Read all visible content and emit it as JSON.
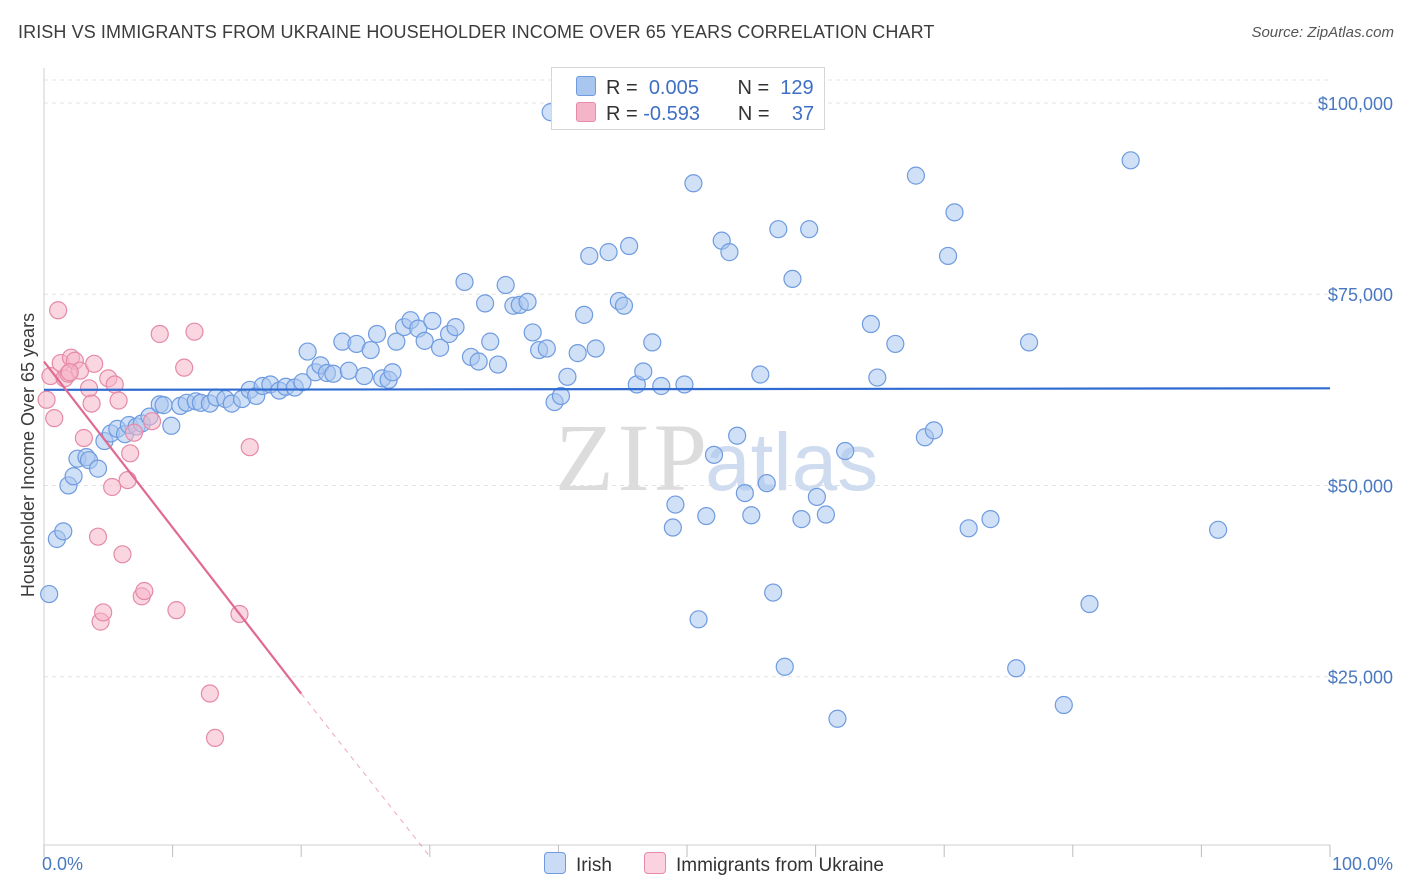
{
  "title": "IRISH VS IMMIGRANTS FROM UKRAINE HOUSEHOLDER INCOME OVER 65 YEARS CORRELATION CHART",
  "source": "Source: ZipAtlas.com",
  "watermark": {
    "zip": "ZIP",
    "atlas": "atlas"
  },
  "legend": {
    "rows": [
      {
        "r_label": "R =",
        "r_value": "0.005",
        "n_label": "N =",
        "n_value": "129",
        "color": "#a9c6ef",
        "stroke": "#6f9be0"
      },
      {
        "r_label": "R =",
        "r_value": "-0.593",
        "n_label": "N =",
        "n_value": "37",
        "color": "#f5b5c8",
        "stroke": "#e58aa8"
      }
    ]
  },
  "bottom_legend": [
    {
      "label": "Irish",
      "color": "#a9c6ef",
      "stroke": "#6f9be0"
    },
    {
      "label": "Immigrants from Ukraine",
      "color": "#f5b5c8",
      "stroke": "#e58aa8"
    }
  ],
  "chart_data": {
    "type": "scatter",
    "title": "IRISH VS IMMIGRANTS FROM UKRAINE HOUSEHOLDER INCOME OVER 65 YEARS CORRELATION CHART",
    "xlabel": "",
    "ylabel": "Householder Income Over 65 years",
    "xlim": [
      0,
      100
    ],
    "ylim": [
      3000,
      103000
    ],
    "x_tick_labels": [
      "0.0%",
      "100.0%"
    ],
    "y_ticks": [
      25000,
      50000,
      75000,
      100000
    ],
    "y_tick_labels": [
      "$25,000",
      "$50,000",
      "$75,000",
      "$100,000"
    ],
    "grid": true,
    "series": [
      {
        "name": "Irish",
        "color": "#6f9be0",
        "fill": "#a9c6ef",
        "trend": {
          "x": [
            0,
            100
          ],
          "y": [
            62500,
            62700
          ],
          "color": "#2f6bd0"
        },
        "points": [
          [
            0.4,
            35800
          ],
          [
            1.0,
            43000
          ],
          [
            1.5,
            44000
          ],
          [
            1.9,
            50000
          ],
          [
            2.3,
            51200
          ],
          [
            2.6,
            53500
          ],
          [
            3.3,
            53700
          ],
          [
            3.5,
            53300
          ],
          [
            4.2,
            52200
          ],
          [
            4.7,
            55800
          ],
          [
            5.2,
            56800
          ],
          [
            5.7,
            57400
          ],
          [
            6.3,
            56700
          ],
          [
            6.6,
            57900
          ],
          [
            7.2,
            57700
          ],
          [
            7.6,
            58100
          ],
          [
            8.2,
            59000
          ],
          [
            9.0,
            60600
          ],
          [
            9.3,
            60500
          ],
          [
            9.9,
            57800
          ],
          [
            10.6,
            60400
          ],
          [
            11.1,
            60800
          ],
          [
            11.8,
            61000
          ],
          [
            12.2,
            60800
          ],
          [
            12.9,
            60700
          ],
          [
            13.4,
            61500
          ],
          [
            14.1,
            61300
          ],
          [
            14.6,
            60700
          ],
          [
            15.4,
            61300
          ],
          [
            16.0,
            62500
          ],
          [
            16.5,
            61700
          ],
          [
            17.0,
            63000
          ],
          [
            17.6,
            63200
          ],
          [
            18.3,
            62400
          ],
          [
            18.8,
            62900
          ],
          [
            19.5,
            62800
          ],
          [
            20.1,
            63500
          ],
          [
            20.5,
            67500
          ],
          [
            21.1,
            64800
          ],
          [
            21.5,
            65700
          ],
          [
            22.0,
            64700
          ],
          [
            22.5,
            64600
          ],
          [
            23.2,
            68800
          ],
          [
            23.7,
            65000
          ],
          [
            24.3,
            68500
          ],
          [
            24.9,
            64300
          ],
          [
            25.4,
            67700
          ],
          [
            25.9,
            69800
          ],
          [
            26.3,
            64000
          ],
          [
            26.8,
            63800
          ],
          [
            27.1,
            64800
          ],
          [
            27.4,
            68800
          ],
          [
            28.0,
            70700
          ],
          [
            28.5,
            71600
          ],
          [
            29.1,
            70500
          ],
          [
            29.6,
            68900
          ],
          [
            30.2,
            71500
          ],
          [
            30.8,
            68000
          ],
          [
            31.5,
            69800
          ],
          [
            32.0,
            70700
          ],
          [
            32.7,
            76600
          ],
          [
            33.2,
            66800
          ],
          [
            33.8,
            66200
          ],
          [
            34.3,
            73800
          ],
          [
            34.7,
            68800
          ],
          [
            35.3,
            65800
          ],
          [
            35.9,
            76200
          ],
          [
            36.5,
            73500
          ],
          [
            37.0,
            73600
          ],
          [
            37.6,
            74000
          ],
          [
            38.0,
            70000
          ],
          [
            38.5,
            67700
          ],
          [
            39.1,
            67900
          ],
          [
            39.7,
            60900
          ],
          [
            40.2,
            61700
          ],
          [
            40.7,
            64200
          ],
          [
            41.5,
            67300
          ],
          [
            42.0,
            72300
          ],
          [
            42.4,
            80000
          ],
          [
            42.9,
            67900
          ],
          [
            43.9,
            80500
          ],
          [
            44.7,
            74100
          ],
          [
            45.1,
            73500
          ],
          [
            45.5,
            81300
          ],
          [
            46.1,
            63200
          ],
          [
            46.6,
            64900
          ],
          [
            47.3,
            68700
          ],
          [
            48.0,
            63000
          ],
          [
            48.9,
            44500
          ],
          [
            49.1,
            47500
          ],
          [
            49.8,
            63200
          ],
          [
            50.5,
            89500
          ],
          [
            50.9,
            32500
          ],
          [
            51.5,
            46000
          ],
          [
            52.1,
            54000
          ],
          [
            52.7,
            82000
          ],
          [
            53.3,
            80500
          ],
          [
            53.9,
            56500
          ],
          [
            54.5,
            49000
          ],
          [
            55.0,
            46100
          ],
          [
            55.7,
            64500
          ],
          [
            56.2,
            50300
          ],
          [
            56.7,
            36000
          ],
          [
            57.1,
            83500
          ],
          [
            57.6,
            26300
          ],
          [
            58.2,
            77000
          ],
          [
            58.9,
            45600
          ],
          [
            59.5,
            83500
          ],
          [
            60.1,
            48500
          ],
          [
            60.8,
            46200
          ],
          [
            61.7,
            19500
          ],
          [
            62.3,
            54500
          ],
          [
            64.3,
            71100
          ],
          [
            64.8,
            64100
          ],
          [
            66.2,
            68500
          ],
          [
            67.8,
            90500
          ],
          [
            68.5,
            56300
          ],
          [
            69.2,
            57200
          ],
          [
            70.3,
            80000
          ],
          [
            70.8,
            85700
          ],
          [
            71.9,
            44400
          ],
          [
            73.6,
            45600
          ],
          [
            75.6,
            26100
          ],
          [
            76.6,
            68700
          ],
          [
            79.3,
            21300
          ],
          [
            81.3,
            34500
          ],
          [
            84.5,
            92500
          ],
          [
            91.3,
            44200
          ],
          [
            39.4,
            98800
          ]
        ]
      },
      {
        "name": "Immigrants from Ukraine",
        "color": "#e58aa8",
        "fill": "#f5b5c8",
        "trend": {
          "x": [
            0,
            20
          ],
          "y": [
            66200,
            22800
          ],
          "dashed_to": [
            30,
            1500
          ],
          "color": "#e06a92"
        },
        "points": [
          [
            0.2,
            61200
          ],
          [
            0.5,
            64300
          ],
          [
            0.8,
            58800
          ],
          [
            1.1,
            72900
          ],
          [
            1.3,
            66000
          ],
          [
            1.6,
            64000
          ],
          [
            1.9,
            64600
          ],
          [
            2.1,
            66700
          ],
          [
            2.4,
            66300
          ],
          [
            2.8,
            65000
          ],
          [
            3.1,
            56200
          ],
          [
            3.5,
            62700
          ],
          [
            3.7,
            60700
          ],
          [
            3.9,
            65900
          ],
          [
            4.2,
            43300
          ],
          [
            4.4,
            32200
          ],
          [
            4.6,
            33400
          ],
          [
            5.0,
            64000
          ],
          [
            5.3,
            49800
          ],
          [
            5.5,
            63200
          ],
          [
            5.8,
            61100
          ],
          [
            6.1,
            41000
          ],
          [
            6.5,
            50700
          ],
          [
            6.7,
            54200
          ],
          [
            7.0,
            56900
          ],
          [
            7.6,
            35500
          ],
          [
            7.8,
            36200
          ],
          [
            8.4,
            58400
          ],
          [
            9.0,
            69800
          ],
          [
            10.3,
            33700
          ],
          [
            10.9,
            65400
          ],
          [
            11.7,
            70100
          ],
          [
            12.9,
            22800
          ],
          [
            13.3,
            17000
          ],
          [
            15.2,
            33200
          ],
          [
            16.0,
            55000
          ],
          [
            2.0,
            64800
          ]
        ]
      }
    ]
  }
}
